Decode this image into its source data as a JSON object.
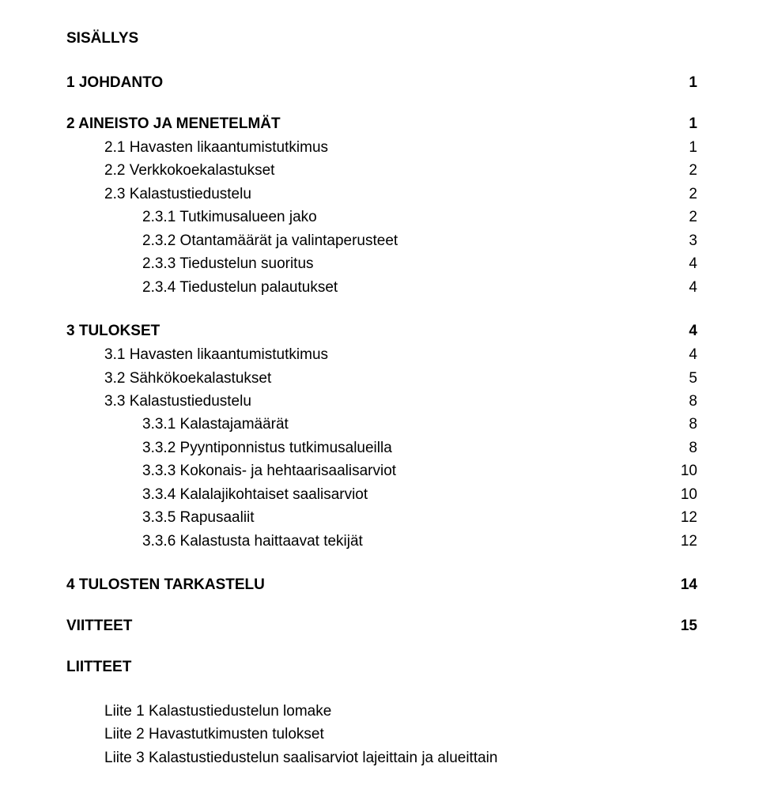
{
  "title": "SISÄLLYS",
  "sections": [
    {
      "heading_label": "1  JOHDANTO",
      "heading_page": "1",
      "entries": []
    },
    {
      "heading_label": "2  AINEISTO JA MENETELMÄT",
      "heading_page": "1",
      "entries": [
        {
          "indent": 1,
          "label": "2.1 Havasten likaantumistutkimus",
          "page": "1"
        },
        {
          "indent": 1,
          "label": "2.2 Verkkokoekalastukset",
          "page": "2"
        },
        {
          "indent": 1,
          "label": "2.3 Kalastustiedustelu",
          "page": "2"
        },
        {
          "indent": 2,
          "label": "2.3.1 Tutkimusalueen jako",
          "page": "2"
        },
        {
          "indent": 2,
          "label": "2.3.2 Otantamäärät ja valintaperusteet",
          "page": "3"
        },
        {
          "indent": 2,
          "label": "2.3.3 Tiedustelun suoritus",
          "page": "4"
        },
        {
          "indent": 2,
          "label": "2.3.4 Tiedustelun palautukset",
          "page": "4"
        }
      ]
    },
    {
      "heading_label": "3  TULOKSET",
      "heading_page": "4",
      "entries": [
        {
          "indent": 1,
          "label": "3.1 Havasten likaantumistutkimus",
          "page": "4"
        },
        {
          "indent": 1,
          "label": "3.2 Sähkökoekalastukset",
          "page": "5"
        },
        {
          "indent": 1,
          "label": "3.3 Kalastustiedustelu",
          "page": "8"
        },
        {
          "indent": 2,
          "label": "3.3.1 Kalastajamäärät",
          "page": "8"
        },
        {
          "indent": 2,
          "label": "3.3.2 Pyyntiponnistus tutkimusalueilla",
          "page": "8"
        },
        {
          "indent": 2,
          "label": "3.3.3 Kokonais- ja hehtaarisaalisarviot",
          "page": "10"
        },
        {
          "indent": 2,
          "label": "3.3.4 Kalalajikohtaiset saalisarviot",
          "page": "10"
        },
        {
          "indent": 2,
          "label": "3.3.5 Rapusaaliit",
          "page": "12"
        },
        {
          "indent": 2,
          "label": "3.3.6 Kalastusta haittaavat tekijät",
          "page": "12"
        }
      ]
    },
    {
      "heading_label": "4  TULOSTEN TARKASTELU",
      "heading_page": "14",
      "entries": []
    },
    {
      "heading_label": "VIITTEET",
      "heading_page": "15",
      "entries": []
    }
  ],
  "appendices_heading": "LIITTEET",
  "appendices": [
    "Liite 1 Kalastustiedustelun lomake",
    "Liite 2 Havastutkimusten tulokset",
    "Liite 3 Kalastustiedustelun saalisarviot lajeittain ja alueittain"
  ]
}
